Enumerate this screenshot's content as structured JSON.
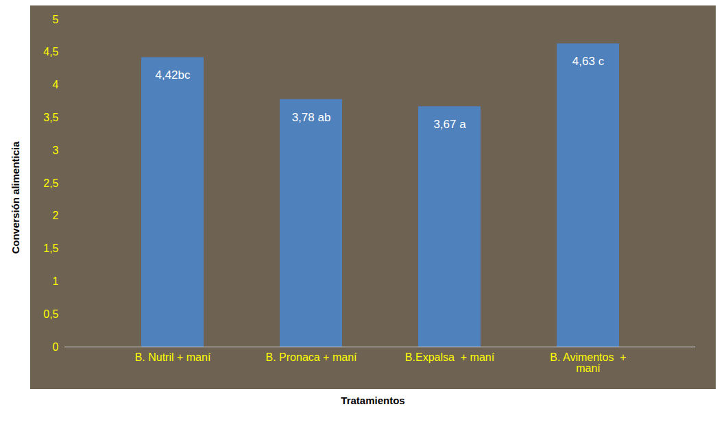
{
  "chart_data": {
    "type": "bar",
    "x_label": "Tratamientos",
    "y_label": "Conversión alimenticia",
    "categories": [
      "B. Nutril + maní",
      "B. Pronaca + maní",
      "B.Expalsa  + maní",
      "B. Avimentos  + maní"
    ],
    "values": [
      4.42,
      3.78,
      3.67,
      4.63
    ],
    "value_labels": [
      "4,42bc",
      "3,78 ab",
      "3,67 a",
      "4,63 c"
    ],
    "color": "#4f81bd",
    "ylim": [
      0,
      5
    ],
    "yticks": [
      0,
      {
        "value": 0.5,
        "label": "0,5"
      },
      1,
      {
        "value": 1.5,
        "label": "1,5"
      },
      2,
      {
        "value": 2.5,
        "label": "2,5"
      },
      3,
      {
        "value": 3.5,
        "label": "3,5"
      },
      4,
      {
        "value": 4.5,
        "label": "4,5"
      },
      5
    ],
    "data_labels": true,
    "grid": false
  }
}
